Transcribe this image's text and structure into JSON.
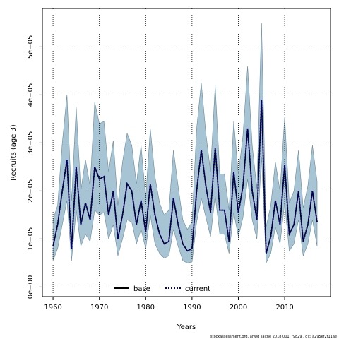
{
  "chart_data": {
    "type": "area",
    "xlabel": "Years",
    "ylabel": "Recruits (age 3)",
    "xlim": [
      1957.7,
      2019.9
    ],
    "ylim": [
      -20000,
      580000
    ],
    "x_ticks": [
      1960,
      1970,
      1980,
      1990,
      2000,
      2010
    ],
    "x_tick_labels": [
      "1960",
      "1970",
      "1980",
      "1990",
      "2000",
      "2010"
    ],
    "y_ticks": [
      0,
      100000,
      200000,
      300000,
      400000,
      500000
    ],
    "y_tick_labels": [
      "0e+00",
      "1e+05",
      "2e+05",
      "3e+05",
      "4e+05",
      "5e+05"
    ],
    "grid": true,
    "legend_position": "bottom-center",
    "x": [
      1960,
      1961,
      1962,
      1963,
      1964,
      1965,
      1966,
      1967,
      1968,
      1969,
      1970,
      1971,
      1972,
      1973,
      1974,
      1975,
      1976,
      1977,
      1978,
      1979,
      1980,
      1981,
      1982,
      1983,
      1984,
      1985,
      1986,
      1987,
      1988,
      1989,
      1990,
      1991,
      1992,
      1993,
      1994,
      1995,
      1996,
      1997,
      1998,
      1999,
      2000,
      2001,
      2002,
      2003,
      2004,
      2005,
      2006,
      2007,
      2008,
      2009,
      2010,
      2011,
      2012,
      2013,
      2014,
      2015,
      2016,
      2017
    ],
    "series": [
      {
        "name": "base",
        "color": "#000000",
        "style": "solid",
        "values": [
          85000,
          130000,
          200000,
          265000,
          80000,
          250000,
          130000,
          175000,
          140000,
          250000,
          225000,
          230000,
          150000,
          200000,
          100000,
          150000,
          215000,
          200000,
          130000,
          180000,
          115000,
          215000,
          150000,
          110000,
          90000,
          95000,
          185000,
          130000,
          90000,
          75000,
          80000,
          200000,
          285000,
          210000,
          155000,
          290000,
          160000,
          160000,
          95000,
          240000,
          155000,
          210000,
          330000,
          200000,
          140000,
          390000,
          70000,
          105000,
          180000,
          130000,
          255000,
          110000,
          130000,
          200000,
          95000,
          130000,
          200000,
          135000
        ]
      },
      {
        "name": "current",
        "color": "#000080",
        "style": "dotted",
        "values": [
          85000,
          130000,
          200000,
          265000,
          80000,
          250000,
          130000,
          175000,
          140000,
          250000,
          225000,
          230000,
          150000,
          200000,
          100000,
          150000,
          215000,
          200000,
          130000,
          180000,
          115000,
          215000,
          150000,
          110000,
          90000,
          95000,
          185000,
          130000,
          90000,
          75000,
          80000,
          200000,
          285000,
          210000,
          155000,
          290000,
          160000,
          160000,
          95000,
          240000,
          155000,
          210000,
          330000,
          200000,
          140000,
          390000,
          70000,
          105000,
          180000,
          130000,
          255000,
          110000,
          130000,
          200000,
          95000,
          130000,
          200000,
          135000
        ]
      }
    ],
    "interval": {
      "color": "#a6c4d4",
      "upper": [
        140000,
        170000,
        300000,
        400000,
        180000,
        375000,
        200000,
        265000,
        210000,
        385000,
        340000,
        345000,
        240000,
        305000,
        170000,
        260000,
        320000,
        295000,
        215000,
        295000,
        185000,
        330000,
        230000,
        175000,
        150000,
        160000,
        285000,
        210000,
        140000,
        120000,
        135000,
        330000,
        425000,
        320000,
        240000,
        420000,
        235000,
        235000,
        160000,
        345000,
        235000,
        315000,
        460000,
        295000,
        205000,
        550000,
        125000,
        170000,
        260000,
        200000,
        355000,
        175000,
        200000,
        285000,
        165000,
        210000,
        295000,
        220000
      ],
      "lower": [
        55000,
        80000,
        130000,
        180000,
        55000,
        160000,
        85000,
        110000,
        95000,
        160000,
        150000,
        155000,
        100000,
        130000,
        65000,
        100000,
        140000,
        135000,
        90000,
        120000,
        80000,
        150000,
        90000,
        70000,
        60000,
        65000,
        120000,
        85000,
        55000,
        50000,
        52000,
        135000,
        185000,
        145000,
        105000,
        190000,
        110000,
        110000,
        70000,
        155000,
        105000,
        145000,
        225000,
        140000,
        100000,
        270000,
        50000,
        70000,
        125000,
        90000,
        175000,
        75000,
        90000,
        140000,
        65000,
        90000,
        140000,
        85000
      ]
    }
  },
  "footer_text": "stockassessment.org, ahwg saithe 2018 001, r9829 , git: a295ef2f11ae"
}
